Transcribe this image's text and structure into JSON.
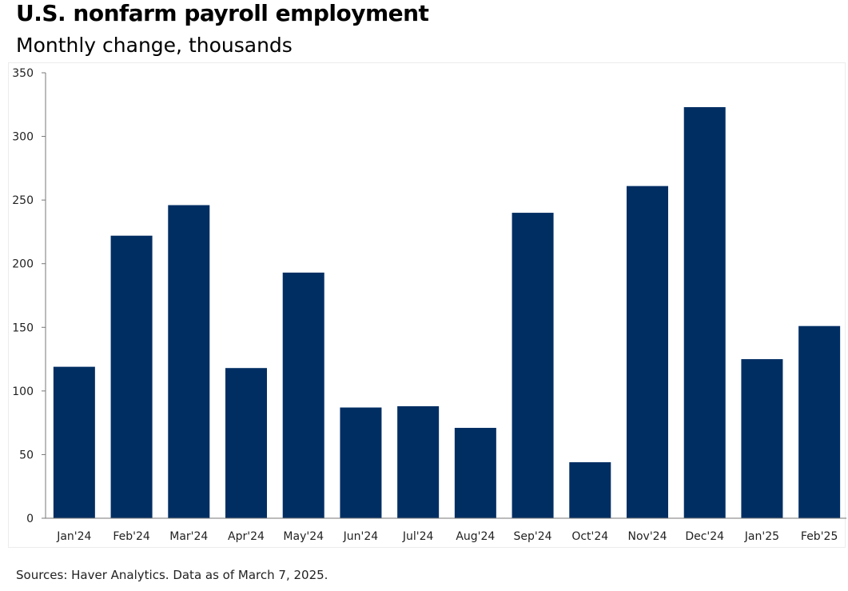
{
  "title": "U.S. nonfarm payroll employment",
  "subtitle": "Monthly change, thousands",
  "footer": "Sources: Haver Analytics. Data as of March 7, 2025.",
  "colors": {
    "bar": "#002e63",
    "axis": "#777777"
  },
  "chart_data": {
    "type": "bar",
    "title": "U.S. nonfarm payroll employment",
    "subtitle": "Monthly change, thousands",
    "xlabel": "",
    "ylabel": "",
    "ylim": [
      0,
      350
    ],
    "yticks": [
      0,
      50,
      100,
      150,
      200,
      250,
      300,
      350
    ],
    "grid": false,
    "categories": [
      "Jan'24",
      "Feb'24",
      "Mar'24",
      "Apr'24",
      "May'24",
      "Jun'24",
      "Jul'24",
      "Aug'24",
      "Sep'24",
      "Oct'24",
      "Nov'24",
      "Dec'24",
      "Jan'25",
      "Feb'25"
    ],
    "series": [
      {
        "name": "Monthly change",
        "values": [
          119,
          222,
          246,
          118,
          193,
          87,
          88,
          71,
          240,
          44,
          261,
          323,
          125,
          151
        ]
      }
    ]
  }
}
